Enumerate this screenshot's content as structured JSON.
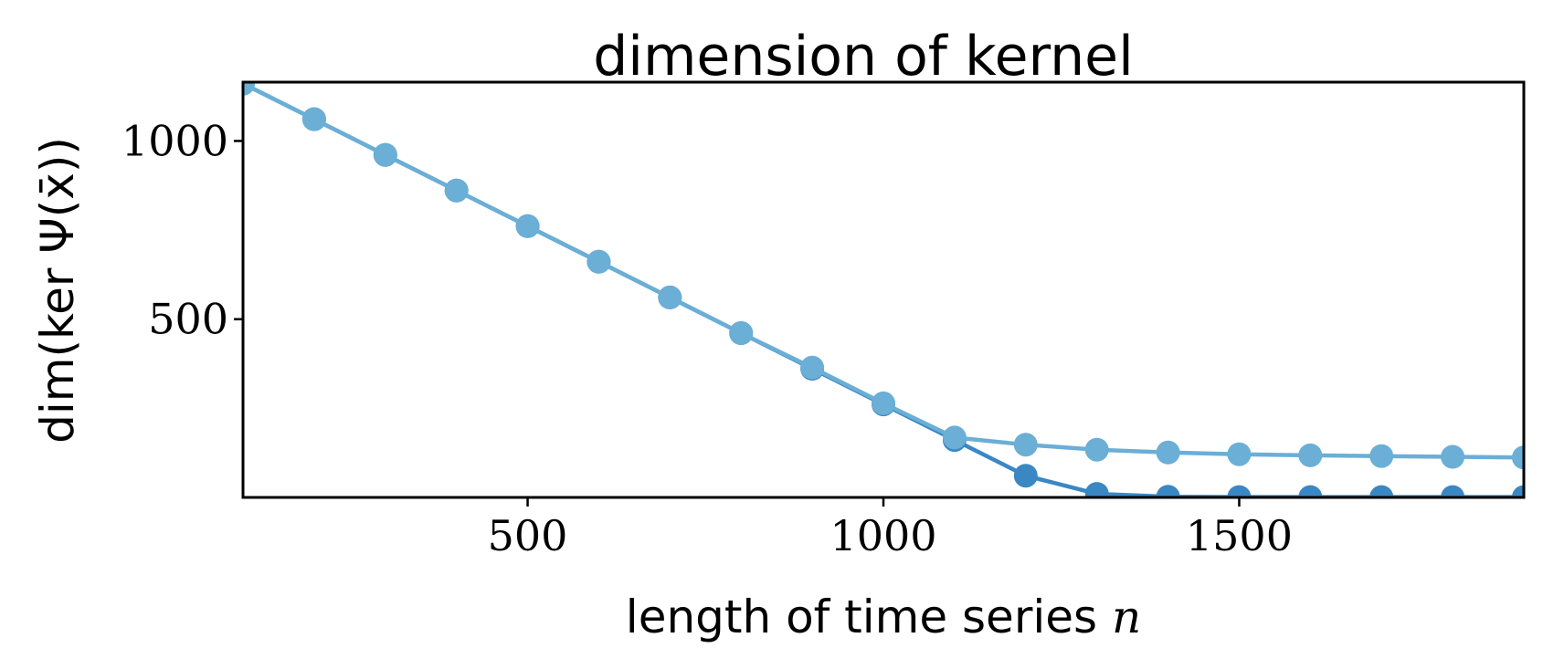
{
  "chart_data": {
    "type": "line",
    "title": "dimension of kernel",
    "xlabel": "length of time series",
    "xlabel_var": "n",
    "ylabel": "dim(ker Ψ(x̄))",
    "xlim": [
      100,
      1900
    ],
    "ylim": [
      0,
      1165
    ],
    "xticks": [
      500,
      1000,
      1500
    ],
    "yticks": [
      500,
      1000
    ],
    "grid": false,
    "legend": "none",
    "x": [
      100,
      200,
      300,
      400,
      500,
      600,
      700,
      800,
      900,
      1000,
      1100,
      1200,
      1300,
      1400,
      1500,
      1600,
      1700,
      1800,
      1900
    ],
    "series": [
      {
        "color": "#3A87C4",
        "values": [
          1161,
          1061,
          961,
          861,
          761,
          661,
          561,
          461,
          361,
          261,
          161,
          61,
          10,
          2,
          1,
          1,
          1,
          1,
          1
        ]
      },
      {
        "color": "#6BAED6",
        "values": [
          1161,
          1061,
          961,
          861,
          761,
          661,
          561,
          461,
          364,
          264,
          168,
          148,
          134,
          126,
          121,
          118,
          116,
          114,
          112
        ]
      }
    ]
  }
}
